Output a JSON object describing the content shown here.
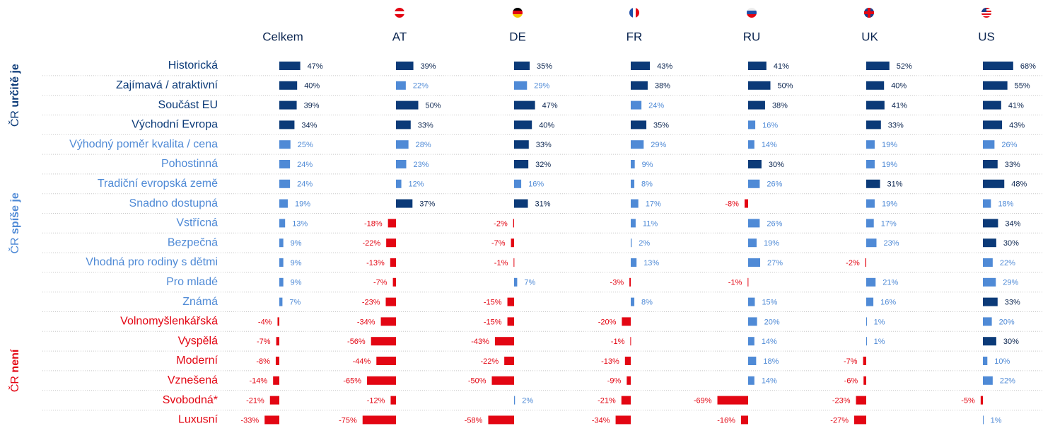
{
  "chart_data": {
    "type": "diverging-bar-table",
    "groups": [
      {
        "prefix": "ČR",
        "label": "určitě je",
        "color": "#0b3a78",
        "rows": [
          "Historická",
          "Zajímavá / atraktivní",
          "Součást EU",
          "Východní Evropa"
        ]
      },
      {
        "prefix": "ČR",
        "label": "spíše je",
        "color": "#4f8ad6",
        "rows": [
          "Výhodný poměr kvalita / cena",
          "Pohostinná",
          "Tradiční evropská země",
          "Snadno dostupná",
          "Vstřícná",
          "Bezpečná",
          "Vhodná pro rodiny s dětmi",
          "Pro mladé",
          "Známá"
        ]
      },
      {
        "prefix": "ČR",
        "label": "není",
        "color": "#e30613",
        "rows": [
          "Volnomyšlenkářská",
          "Vyspělá",
          "Moderní",
          "Vznešená",
          "Svobodná*",
          "Luxusní"
        ]
      }
    ],
    "colors": {
      "strong": "#0b3a78",
      "weak": "#4f8ad6",
      "negative": "#e30613"
    },
    "strong_from": 30,
    "series": [
      {
        "name": "Celkem",
        "values": [
          47,
          40,
          39,
          34,
          25,
          24,
          24,
          19,
          13,
          9,
          9,
          9,
          7,
          -4,
          -7,
          -8,
          -14,
          -21,
          -33
        ],
        "value_labels": [
          "47%",
          "40%",
          "39%",
          "34%",
          "25%",
          "24%",
          "24%",
          "19%",
          "13%",
          "9%",
          "9%",
          "9%",
          "7%",
          "-4%",
          "-7%",
          "-8%",
          "-14%",
          "-21%",
          "-33%"
        ]
      },
      {
        "name": "AT",
        "values": [
          39,
          22,
          50,
          33,
          28,
          23,
          12,
          37,
          -18,
          -22,
          -13,
          -7,
          -23,
          -34,
          -56,
          -44,
          -65,
          -12,
          -75
        ],
        "value_labels": [
          "39%",
          "22%",
          "50%",
          "33%",
          "28%",
          "23%",
          "12%",
          "37%",
          "-18%",
          "-22%",
          "-13%",
          "-7%",
          "-23%",
          "-34%",
          "-56%",
          "-44%",
          "-65%",
          "-12%",
          "-75%"
        ]
      },
      {
        "name": "DE",
        "values": [
          35,
          29,
          47,
          40,
          33,
          32,
          16,
          31,
          -2,
          -7,
          -1,
          7,
          -15,
          -15,
          -43,
          -22,
          -50,
          2,
          -58
        ],
        "value_labels": [
          "35%",
          "29%",
          "47%",
          "40%",
          "33%",
          "32%",
          "16%",
          "31%",
          "-2%",
          "-7%",
          "-1%",
          "7%",
          "-15%",
          "-15%",
          "-43%",
          "-22%",
          "-50%",
          "2%",
          "-58%"
        ]
      },
      {
        "name": "FR",
        "values": [
          43,
          38,
          24,
          35,
          29,
          9,
          8,
          17,
          11,
          2,
          13,
          -3,
          8,
          -20,
          -1,
          -13,
          -9,
          -21,
          -34
        ],
        "value_labels": [
          "43%",
          "38%",
          "24%",
          "35%",
          "29%",
          "9%",
          "8%",
          "17%",
          "11%",
          "2%",
          "13%",
          "-3%",
          "8%",
          "-20%",
          "-1%",
          "-13%",
          "-9%",
          "-21%",
          "-34%"
        ]
      },
      {
        "name": "RU",
        "values": [
          41,
          50,
          38,
          16,
          14,
          30,
          26,
          -8,
          26,
          19,
          27,
          -1,
          15,
          20,
          14,
          18,
          14,
          -69,
          -16
        ],
        "value_labels": [
          "41%",
          "50%",
          "38%",
          "16%",
          "14%",
          "30%",
          "26%",
          "-8%",
          "26%",
          "19%",
          "27%",
          "-1%",
          "15%",
          "20%",
          "14%",
          "18%",
          "14%",
          "-69%",
          "-16%"
        ]
      },
      {
        "name": "UK",
        "values": [
          52,
          40,
          41,
          33,
          19,
          19,
          31,
          19,
          17,
          23,
          -2,
          21,
          16,
          1,
          1,
          -7,
          -6,
          -23,
          -27
        ],
        "value_labels": [
          "52%",
          "40%",
          "41%",
          "33%",
          "19%",
          "19%",
          "31%",
          "19%",
          "17%",
          "23%",
          "-2%",
          "21%",
          "16%",
          "1%",
          "1%",
          "-7%",
          "-6%",
          "-23%",
          "-27%"
        ]
      },
      {
        "name": "US",
        "values": [
          68,
          55,
          41,
          43,
          26,
          33,
          48,
          18,
          34,
          30,
          22,
          29,
          33,
          20,
          30,
          10,
          22,
          -5,
          1
        ],
        "value_labels": [
          "68%",
          "55%",
          "41%",
          "43%",
          "26%",
          "33%",
          "48%",
          "18%",
          "34%",
          "30%",
          "22%",
          "29%",
          "33%",
          "20%",
          "30%",
          "10%",
          "22%",
          "-5%",
          "1%"
        ]
      }
    ]
  }
}
